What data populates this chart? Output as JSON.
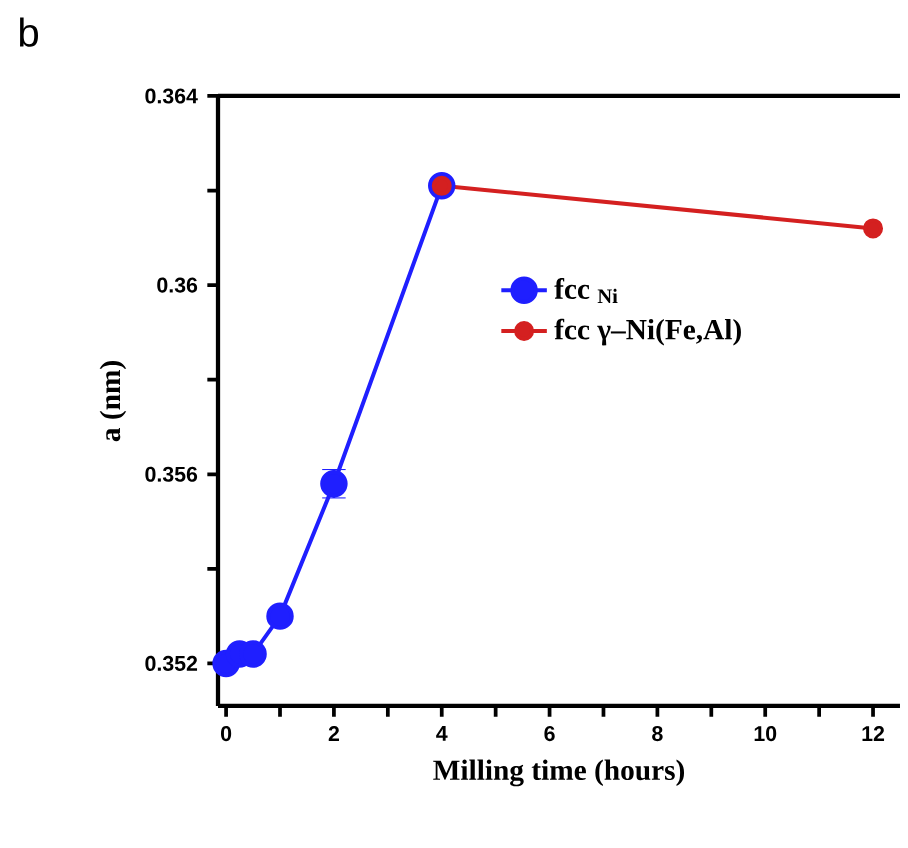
{
  "chart_data": {
    "type": "line",
    "title": "b",
    "xlabel": "Milling time (hours)",
    "ylabel": "a (nm)",
    "xlim": [
      -0.15,
      12.5
    ],
    "ylim": [
      0.3511,
      0.364
    ],
    "xticks": [
      0,
      {
        "value": 1,
        "label": null
      },
      2,
      {
        "value": 3,
        "label": null
      },
      4,
      {
        "value": 5,
        "label": null
      },
      6,
      {
        "value": 7,
        "label": null
      },
      8,
      {
        "value": 9,
        "label": null
      },
      10,
      {
        "value": 11,
        "label": null
      },
      12
    ],
    "yticks": [
      0.352,
      {
        "value": 0.354,
        "label": null
      },
      0.356,
      {
        "value": 0.358,
        "label": null
      },
      0.36,
      {
        "value": 0.362,
        "label": null
      },
      0.364
    ],
    "legend": "right",
    "marker": "circle",
    "line_style": "solid",
    "series": [
      {
        "name": "fcc $_{Ni}$",
        "color": "#1f1fff",
        "x": [
          0,
          0.25,
          0.5,
          1,
          2,
          4
        ],
        "values": [
          0.352,
          0.3522,
          0.3522,
          0.353,
          0.3558,
          0.3621
        ],
        "errors": [
          null,
          null,
          null,
          null,
          0.0003,
          null
        ]
      },
      {
        "name": "fcc γ–Ni(Fe,Al)",
        "color": "#d42020",
        "x": [
          4,
          12
        ],
        "values": [
          0.3621,
          0.3612
        ]
      }
    ]
  }
}
